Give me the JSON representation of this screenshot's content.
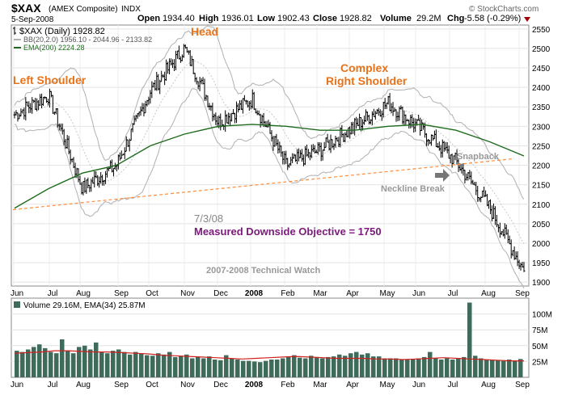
{
  "header": {
    "symbol": "$XAX",
    "name": "(AMEX Composite)",
    "exchange": "INDX",
    "date": "5-Sep-2008",
    "open_label": "Open",
    "open": "1934.40",
    "high_label": "High",
    "high": "1936.01",
    "low_label": "Low",
    "low": "1902.43",
    "close_label": "Close",
    "close": "1928.82",
    "volume_label": "Volume",
    "volume": "29.2M",
    "chg_label": "Chg",
    "chg": "-5.58 (-0.29%)",
    "watermark": "© StockCharts.com"
  },
  "legend": {
    "price": "$XAX (Daily) 1928.82",
    "bb": "BB(20,2.0) 1956.10 - 2044.96 - 2133.82",
    "ema": "EMA(200) 2224.28",
    "volume": "Volume 29.16M, EMA(34) 25.87M"
  },
  "annotations": {
    "left_shoulder": "Left Shoulder",
    "head": "Head",
    "right_shoulder_1": "Complex",
    "right_shoulder_2": "Right Shoulder",
    "snapback": "Snapback",
    "neckline_break": "Neckline Break",
    "date_mark": "7/3/08",
    "objective": "Measured Downside Objective = 1750",
    "credit": "2007-2008 Technical Watch"
  },
  "colors": {
    "price": "#000000",
    "bb": "#b0b0b0",
    "ema": "#1e6b1e",
    "neckline": "#ff8c3a",
    "annotation": "#e8731a",
    "objective": "#7a1a7a",
    "volume_bar": "#3e6b5a",
    "volume_ema": "#d02020",
    "chg": "#a00000"
  },
  "chart_data": [
    {
      "type": "line",
      "title": "$XAX (AMEX Composite) INDX",
      "x": [
        "Jun 2007",
        "Jul 2007",
        "Aug 2007",
        "Sep 2007",
        "Oct 2007",
        "Nov 2007",
        "Dec 2007",
        "Jan 2008",
        "Feb 2008",
        "Mar 2008",
        "Apr 2008",
        "May 2008",
        "Jun 2008",
        "Jul 2008",
        "Aug 2008",
        "Sep 2008"
      ],
      "x_ticks": [
        "Jun",
        "Jul",
        "Aug",
        "Sep",
        "Oct",
        "Nov",
        "Dec",
        "2008",
        "Feb",
        "Mar",
        "Apr",
        "May",
        "Jun",
        "Jul",
        "Aug",
        "Sep"
      ],
      "y_ticks": [
        1900,
        1950,
        2000,
        2050,
        2100,
        2150,
        2200,
        2250,
        2300,
        2350,
        2400,
        2450,
        2500,
        2550
      ],
      "ylim": [
        1890,
        2560
      ],
      "series": [
        {
          "name": "$XAX (Daily)",
          "values": [
            2330,
            2380,
            2140,
            2200,
            2390,
            2500,
            2310,
            2370,
            2200,
            2240,
            2300,
            2360,
            2290,
            2210,
            2090,
            1929
          ]
        },
        {
          "name": "EMA(200)",
          "values": [
            2090,
            2140,
            2180,
            2200,
            2250,
            2280,
            2300,
            2305,
            2300,
            2290,
            2290,
            2300,
            2305,
            2290,
            2260,
            2224
          ]
        }
      ],
      "neckline": {
        "x": [
          "Aug 2007",
          "Aug 2008"
        ],
        "y": [
          2100,
          2217
        ]
      }
    },
    {
      "type": "bar",
      "title": "Volume",
      "x_ticks": [
        "Jun",
        "Jul",
        "Aug",
        "Sep",
        "Oct",
        "Nov",
        "Dec",
        "2008",
        "Feb",
        "Mar",
        "Apr",
        "May",
        "Jun",
        "Jul",
        "Aug",
        "Sep"
      ],
      "y_ticks_label": [
        "25M",
        "50M",
        "75M",
        "100M"
      ],
      "y_ticks": [
        25,
        50,
        75,
        100
      ],
      "ylim": [
        0,
        125
      ],
      "unit": "M",
      "series": [
        {
          "name": "Volume",
          "values": [
            42,
            40,
            44,
            48,
            52,
            46,
            40,
            38,
            60,
            42,
            38,
            48,
            50,
            44,
            55,
            40,
            38,
            42,
            44,
            40,
            36,
            40,
            38,
            35,
            34,
            38,
            36,
            40,
            32,
            34,
            36,
            30,
            32,
            30,
            33,
            28,
            27,
            35,
            30,
            28,
            26,
            26,
            25,
            24,
            26,
            28,
            28,
            30,
            33,
            35,
            31,
            30,
            34,
            32,
            30,
            32,
            33,
            36,
            34,
            38,
            40,
            36,
            38,
            33,
            33,
            30,
            30,
            30,
            28,
            28,
            28,
            30,
            32,
            40,
            30,
            28,
            30,
            28,
            30,
            32,
            118,
            34,
            30,
            28,
            28,
            27,
            26,
            28,
            26,
            29
          ]
        },
        {
          "name": "EMA(34)",
          "values": [
            38,
            39,
            40,
            42,
            42,
            41,
            40,
            40,
            39,
            38,
            37,
            35,
            34,
            33,
            32,
            31,
            30,
            29,
            30,
            31,
            32,
            33,
            32,
            31,
            30,
            30,
            30,
            29,
            29,
            28,
            29,
            30,
            31,
            30,
            29,
            28,
            27,
            26,
            26
          ]
        }
      ]
    }
  ]
}
